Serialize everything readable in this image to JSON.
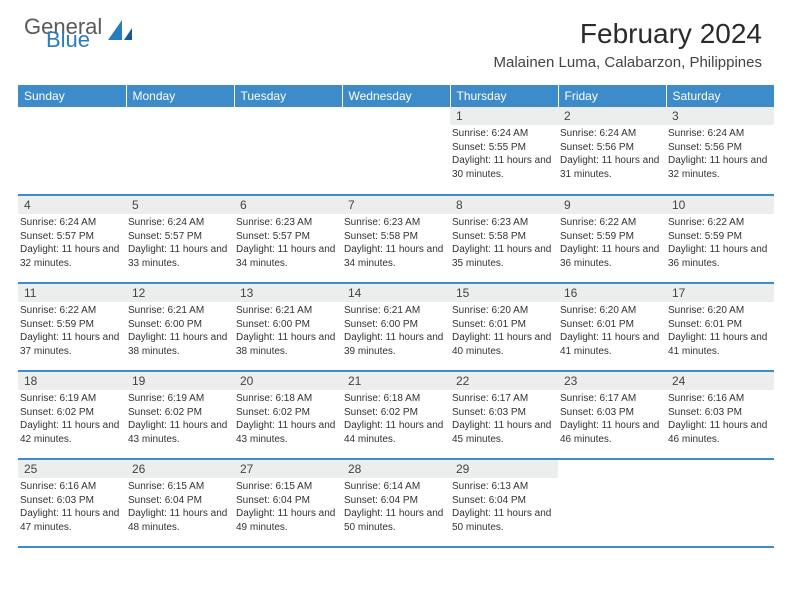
{
  "brand": {
    "line1": "General",
    "line2": "Blue"
  },
  "title": "February 2024",
  "location": "Malainen Luma, Calabarzon, Philippines",
  "colors": {
    "header_bg": "#3d8bc9",
    "header_text": "#ffffff",
    "daynum_bg": "#eceded",
    "text": "#333333",
    "title_color": "#2b2b2b",
    "brand_gray": "#5a5a5a",
    "brand_blue": "#2b7bbf"
  },
  "weekdays": [
    "Sunday",
    "Monday",
    "Tuesday",
    "Wednesday",
    "Thursday",
    "Friday",
    "Saturday"
  ],
  "weeks": [
    [
      null,
      null,
      null,
      null,
      {
        "n": "1",
        "sr": "6:24 AM",
        "ss": "5:55 PM",
        "d": "11 hours and 30 minutes."
      },
      {
        "n": "2",
        "sr": "6:24 AM",
        "ss": "5:56 PM",
        "d": "11 hours and 31 minutes."
      },
      {
        "n": "3",
        "sr": "6:24 AM",
        "ss": "5:56 PM",
        "d": "11 hours and 32 minutes."
      }
    ],
    [
      {
        "n": "4",
        "sr": "6:24 AM",
        "ss": "5:57 PM",
        "d": "11 hours and 32 minutes."
      },
      {
        "n": "5",
        "sr": "6:24 AM",
        "ss": "5:57 PM",
        "d": "11 hours and 33 minutes."
      },
      {
        "n": "6",
        "sr": "6:23 AM",
        "ss": "5:57 PM",
        "d": "11 hours and 34 minutes."
      },
      {
        "n": "7",
        "sr": "6:23 AM",
        "ss": "5:58 PM",
        "d": "11 hours and 34 minutes."
      },
      {
        "n": "8",
        "sr": "6:23 AM",
        "ss": "5:58 PM",
        "d": "11 hours and 35 minutes."
      },
      {
        "n": "9",
        "sr": "6:22 AM",
        "ss": "5:59 PM",
        "d": "11 hours and 36 minutes."
      },
      {
        "n": "10",
        "sr": "6:22 AM",
        "ss": "5:59 PM",
        "d": "11 hours and 36 minutes."
      }
    ],
    [
      {
        "n": "11",
        "sr": "6:22 AM",
        "ss": "5:59 PM",
        "d": "11 hours and 37 minutes."
      },
      {
        "n": "12",
        "sr": "6:21 AM",
        "ss": "6:00 PM",
        "d": "11 hours and 38 minutes."
      },
      {
        "n": "13",
        "sr": "6:21 AM",
        "ss": "6:00 PM",
        "d": "11 hours and 38 minutes."
      },
      {
        "n": "14",
        "sr": "6:21 AM",
        "ss": "6:00 PM",
        "d": "11 hours and 39 minutes."
      },
      {
        "n": "15",
        "sr": "6:20 AM",
        "ss": "6:01 PM",
        "d": "11 hours and 40 minutes."
      },
      {
        "n": "16",
        "sr": "6:20 AM",
        "ss": "6:01 PM",
        "d": "11 hours and 41 minutes."
      },
      {
        "n": "17",
        "sr": "6:20 AM",
        "ss": "6:01 PM",
        "d": "11 hours and 41 minutes."
      }
    ],
    [
      {
        "n": "18",
        "sr": "6:19 AM",
        "ss": "6:02 PM",
        "d": "11 hours and 42 minutes."
      },
      {
        "n": "19",
        "sr": "6:19 AM",
        "ss": "6:02 PM",
        "d": "11 hours and 43 minutes."
      },
      {
        "n": "20",
        "sr": "6:18 AM",
        "ss": "6:02 PM",
        "d": "11 hours and 43 minutes."
      },
      {
        "n": "21",
        "sr": "6:18 AM",
        "ss": "6:02 PM",
        "d": "11 hours and 44 minutes."
      },
      {
        "n": "22",
        "sr": "6:17 AM",
        "ss": "6:03 PM",
        "d": "11 hours and 45 minutes."
      },
      {
        "n": "23",
        "sr": "6:17 AM",
        "ss": "6:03 PM",
        "d": "11 hours and 46 minutes."
      },
      {
        "n": "24",
        "sr": "6:16 AM",
        "ss": "6:03 PM",
        "d": "11 hours and 46 minutes."
      }
    ],
    [
      {
        "n": "25",
        "sr": "6:16 AM",
        "ss": "6:03 PM",
        "d": "11 hours and 47 minutes."
      },
      {
        "n": "26",
        "sr": "6:15 AM",
        "ss": "6:04 PM",
        "d": "11 hours and 48 minutes."
      },
      {
        "n": "27",
        "sr": "6:15 AM",
        "ss": "6:04 PM",
        "d": "11 hours and 49 minutes."
      },
      {
        "n": "28",
        "sr": "6:14 AM",
        "ss": "6:04 PM",
        "d": "11 hours and 50 minutes."
      },
      {
        "n": "29",
        "sr": "6:13 AM",
        "ss": "6:04 PM",
        "d": "11 hours and 50 minutes."
      },
      null,
      null
    ]
  ],
  "labels": {
    "sunrise": "Sunrise:",
    "sunset": "Sunset:",
    "daylight": "Daylight:"
  }
}
